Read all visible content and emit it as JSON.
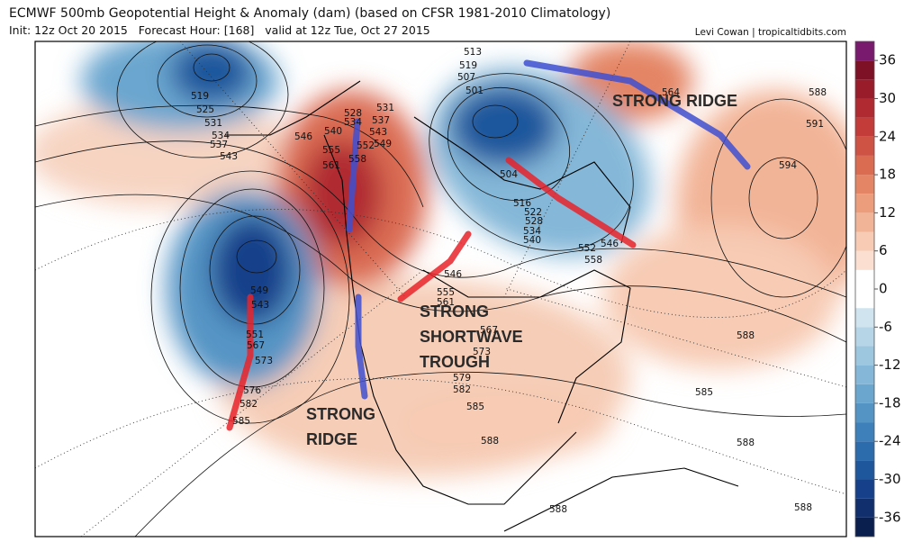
{
  "header": {
    "title": "ECMWF 500mb Geopotential Height & Anomaly (dam) (based on CFSR 1981-2010 Climatology)",
    "subtitle": "Init: 12z Oct 20 2015   Forecast Hour: [168]   valid at 12z Tue, Oct 27 2015",
    "credit": "Levi Cowan | tropicaltidbits.com"
  },
  "colorbar": {
    "range": [
      -39,
      39
    ],
    "ticks": [
      36,
      30,
      24,
      18,
      12,
      6,
      0,
      -6,
      -12,
      -18,
      -24,
      -30,
      -36
    ],
    "colors": [
      "#0b1f4f",
      "#102f6c",
      "#16418a",
      "#1f579c",
      "#2d6cac",
      "#3e80b9",
      "#5494c5",
      "#6ba6cf",
      "#84b7d8",
      "#9dc6df",
      "#b6d5e7",
      "#d0e4ef",
      "#ffffff",
      "#ffffff",
      "#fbe0d2",
      "#f7cbb4",
      "#f2b497",
      "#ec9d7c",
      "#e48565",
      "#da6c52",
      "#cf5345",
      "#c33c3a",
      "#b02a31",
      "#991c2b",
      "#7f1126",
      "#7a1a6e"
    ]
  },
  "contour_labels": [
    519,
    525,
    531,
    534,
    537,
    543,
    540,
    546,
    555,
    561,
    528,
    534,
    531,
    537,
    543,
    549,
    552,
    558,
    513,
    519,
    507,
    501,
    504,
    516,
    522,
    528,
    534,
    540,
    552,
    558,
    546,
    564,
    588,
    591,
    594,
    546,
    555,
    561,
    567,
    573,
    579,
    582,
    585,
    588,
    549,
    543,
    551,
    567,
    573,
    576,
    582,
    585,
    588,
    585,
    588,
    588,
    588
  ],
  "annotations": [
    {
      "lines": [
        "STRONG RIDGE"
      ]
    },
    {
      "lines": [
        "STRONG",
        "SHORTWAVE",
        "TROUGH"
      ]
    },
    {
      "lines": [
        "STRONG",
        "RIDGE"
      ]
    }
  ]
}
